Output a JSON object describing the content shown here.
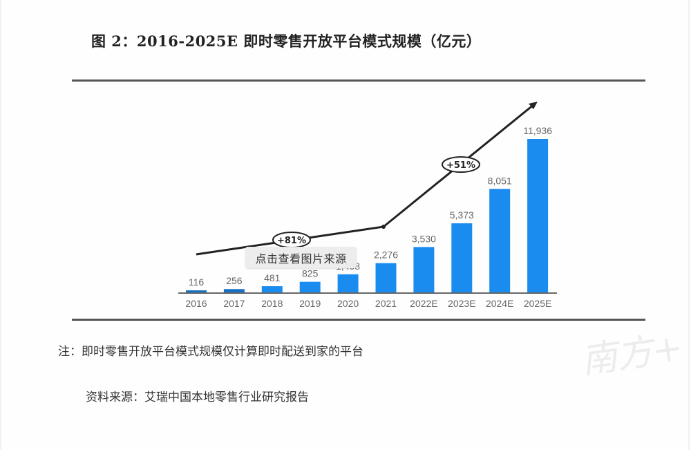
{
  "title": "图 2：2016-2025E 即时零售开放平台模式规模（亿元）",
  "note": "注：即时零售开放平台模式规模仅计算即时配送到家的平台",
  "source": "资料来源：艾瑞中国本地零售行业研究报告",
  "tooltip": "点击查看图片来源",
  "watermark": "南方+",
  "colors": {
    "bar": "#1a8cf0",
    "bar_dark": "#1670c4",
    "line": "#222222",
    "label": "#666666",
    "rule": "#555555"
  },
  "chart_data": {
    "type": "bar",
    "title": "2016-2025E 即时零售开放平台模式规模（亿元）",
    "xlabel": "",
    "ylabel": "亿元",
    "categories": [
      "2016",
      "2017",
      "2018",
      "2019",
      "2020",
      "2021",
      "2022E",
      "2023E",
      "2024E",
      "2025E"
    ],
    "values": [
      116,
      256,
      481,
      825,
      1408,
      2276,
      3530,
      5373,
      8051,
      11936
    ],
    "value_labels": [
      "116",
      "256",
      "481",
      "825",
      "1,408",
      "2,276",
      "3,530",
      "5,373",
      "8,051",
      "11,936"
    ],
    "grid": false,
    "trend_line": {
      "segments": [
        {
          "from": "2016",
          "to": "2021",
          "annotation": "+81%"
        },
        {
          "from": "2021",
          "to": "2025E",
          "annotation": "+51%"
        }
      ]
    },
    "annotations": [
      "+81%",
      "+51%"
    ]
  }
}
